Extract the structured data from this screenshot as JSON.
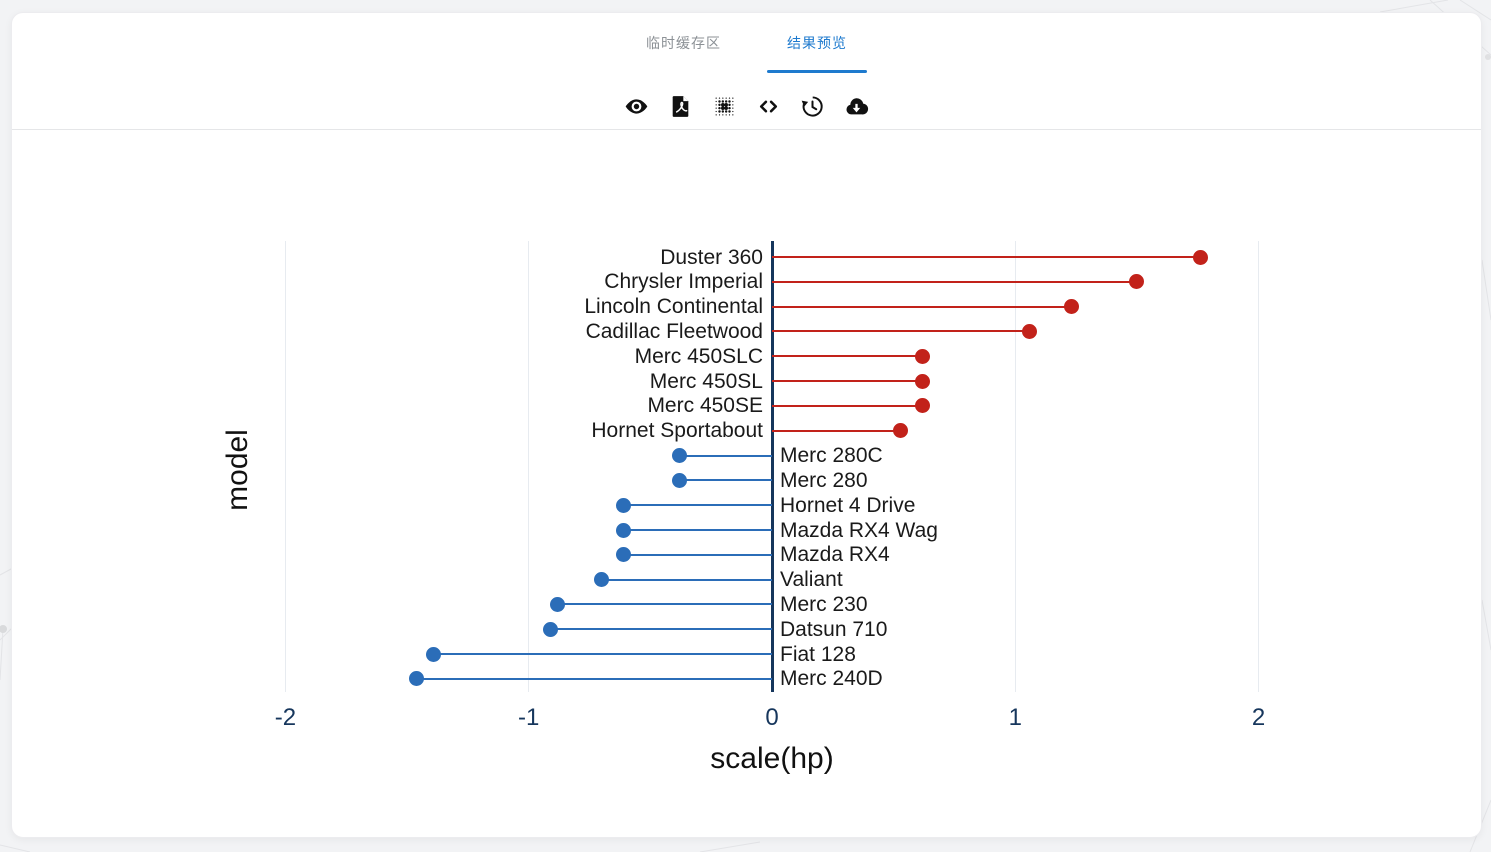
{
  "theme": {
    "accent": "#1E7ACE",
    "inactive_tab": "#8C9196"
  },
  "tabs": [
    {
      "label": "临时缓存区",
      "active": false
    },
    {
      "label": "结果预览",
      "active": true
    }
  ],
  "toolbar": {
    "icons": [
      "eye",
      "pdf-export",
      "dot-grid",
      "code-view",
      "history",
      "cloud-download"
    ]
  },
  "chart_data": {
    "type": "bar",
    "variant": "diverging-lollipop",
    "orientation": "horizontal",
    "title": "",
    "xlabel": "scale(hp)",
    "ylabel": "model",
    "xlim": [
      -2,
      2
    ],
    "x_ticks": [
      -2,
      -1,
      0,
      1,
      2
    ],
    "zero_line": true,
    "grid": "vertical-major-only",
    "legend": "none",
    "categories": [
      "Duster 360",
      "Chrysler Imperial",
      "Lincoln Continental",
      "Cadillac Fleetwood",
      "Merc 450SLC",
      "Merc 450SL",
      "Merc 450SE",
      "Hornet Sportabout",
      "Merc 280C",
      "Merc 280",
      "Hornet 4 Drive",
      "Mazda RX4 Wag",
      "Mazda RX4",
      "Valiant",
      "Merc 230",
      "Datsun 710",
      "Fiat 128",
      "Merc 240D"
    ],
    "values": [
      1.76,
      1.5,
      1.23,
      1.06,
      0.62,
      0.62,
      0.62,
      0.53,
      -0.38,
      -0.38,
      -0.61,
      -0.61,
      -0.61,
      -0.7,
      -0.88,
      -0.91,
      -1.39,
      -1.46
    ],
    "colors": {
      "positive": "#C2221A",
      "negative": "#2B6DB8",
      "axis_line": "#16365C",
      "axis_tick_text": "#16365C",
      "gridline": "#E7EBF0",
      "label_text": "#1A1A1A"
    }
  }
}
